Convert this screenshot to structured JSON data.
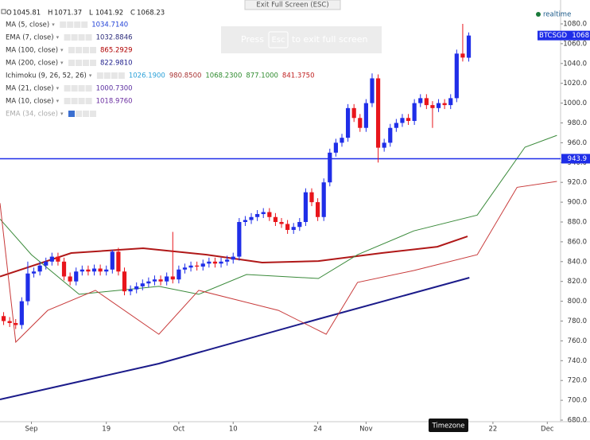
{
  "chart_data": {
    "type": "candlestick",
    "symbol": "BTCSGD",
    "last_price_label": "1068",
    "ohlc_labels": [
      "O",
      "H",
      "L",
      "C"
    ],
    "x": [
      1,
      2,
      3,
      4,
      5,
      6,
      7,
      8,
      9,
      10,
      11,
      12,
      13,
      14,
      15,
      16,
      17,
      18,
      19,
      20,
      21,
      22,
      23,
      24,
      25,
      26,
      27,
      28,
      29,
      30,
      31,
      32,
      33,
      34,
      35,
      36,
      37,
      38,
      39,
      40,
      41,
      42,
      43,
      44,
      45,
      46,
      47,
      48,
      49,
      50,
      51,
      52,
      53,
      54,
      55,
      56,
      57,
      58,
      59,
      60,
      61,
      62,
      63,
      64,
      65,
      66,
      67,
      68,
      69,
      70,
      71,
      72,
      73,
      74,
      75,
      76,
      77,
      78
    ],
    "open": [
      785,
      780,
      778,
      776,
      800,
      828,
      830,
      836,
      840,
      845,
      840,
      825,
      820,
      830,
      832,
      830,
      833,
      830,
      832,
      850,
      830,
      810,
      812,
      815,
      818,
      820,
      822,
      820,
      825,
      822,
      832,
      834,
      836,
      835,
      838,
      840,
      838,
      840,
      842,
      845,
      880,
      882,
      885,
      888,
      890,
      885,
      880,
      878,
      872,
      875,
      880,
      910,
      900,
      885,
      920,
      950,
      960,
      965,
      995,
      985,
      975,
      1000,
      1025,
      955,
      960,
      975,
      980,
      985,
      982,
      1000,
      1005,
      998,
      995,
      1000,
      998,
      1005,
      1050,
      1045.81
    ],
    "high": [
      789,
      784,
      782,
      804,
      840,
      834,
      840,
      844,
      849,
      849,
      844,
      829,
      834,
      836,
      836,
      837,
      837,
      836,
      852,
      854,
      834,
      816,
      819,
      822,
      824,
      826,
      826,
      829,
      870,
      836,
      838,
      840,
      840,
      842,
      844,
      844,
      844,
      846,
      849,
      884,
      886,
      889,
      892,
      894,
      894,
      889,
      884,
      882,
      879,
      884,
      914,
      914,
      904,
      924,
      954,
      964,
      969,
      999,
      999,
      989,
      1004,
      1030,
      1029,
      964,
      979,
      984,
      989,
      989,
      1004,
      1009,
      1009,
      1002,
      1004,
      1004,
      1009,
      1054,
      1080,
      1071.37
    ],
    "low": [
      776,
      774,
      772,
      772,
      796,
      824,
      826,
      832,
      836,
      836,
      821,
      816,
      816,
      826,
      826,
      826,
      826,
      826,
      828,
      826,
      806,
      806,
      808,
      811,
      814,
      816,
      816,
      816,
      818,
      818,
      828,
      830,
      831,
      831,
      834,
      834,
      834,
      836,
      838,
      841,
      876,
      878,
      881,
      884,
      881,
      876,
      874,
      868,
      868,
      871,
      876,
      896,
      881,
      881,
      916,
      946,
      956,
      961,
      981,
      971,
      971,
      996,
      940,
      951,
      956,
      971,
      976,
      978,
      978,
      996,
      994,
      975,
      991,
      994,
      994,
      1001,
      1042,
      1041.92
    ],
    "close": [
      780,
      778,
      776,
      800,
      828,
      830,
      836,
      840,
      845,
      840,
      825,
      820,
      830,
      832,
      830,
      833,
      830,
      832,
      850,
      830,
      810,
      812,
      815,
      818,
      820,
      822,
      820,
      825,
      822,
      832,
      834,
      836,
      835,
      838,
      840,
      838,
      840,
      842,
      845,
      880,
      882,
      885,
      888,
      890,
      885,
      880,
      878,
      872,
      875,
      880,
      910,
      900,
      885,
      920,
      950,
      960,
      965,
      995,
      985,
      975,
      1000,
      1025,
      955,
      960,
      975,
      980,
      985,
      982,
      1000,
      1005,
      998,
      995,
      1000,
      998,
      1005,
      1050,
      1046,
      1068.23
    ],
    "up_color": "#1f2ee8",
    "down_color": "#e8151b",
    "indicators": [
      {
        "name": "MA (5, close)",
        "readouts": [
          "1034.7140"
        ],
        "colors": [
          "#1f3fd6"
        ]
      },
      {
        "name": "EMA (7, close)",
        "readouts": [
          "1032.8846"
        ],
        "colors": [
          "#2b2b7a"
        ]
      },
      {
        "name": "MA (100, close)",
        "readouts": [
          "865.2929"
        ],
        "colors": [
          "#b00000"
        ],
        "line_color": "#b01818",
        "x": [
          0.4,
          12.2,
          24.1,
          34.6,
          43.8,
          53.1,
          63.6,
          72.8,
          77.8
        ],
        "values": [
          825,
          848.7,
          853.5,
          847,
          839,
          840.6,
          848.7,
          855,
          865.5
        ]
      },
      {
        "name": "MA (200, close)",
        "readouts": [
          "822.9810"
        ],
        "colors": [
          "#1b1b8a"
        ],
        "line_color": "#1b1b8a",
        "x": [
          0.4,
          26.7,
          53.1,
          78.1
        ],
        "values": [
          700.9,
          737,
          782,
          823.8
        ]
      },
      {
        "name": "Ichimoku (9, 26, 52, 26)",
        "readouts": [
          "1026.1900",
          "980.8500",
          "1068.2300",
          "877.1000",
          "841.3750"
        ],
        "colors": [
          "#2aa0d8",
          "#a83232",
          "#2e8b2e",
          "#2e8b2e",
          "#c02020"
        ],
        "lines": [
          {
            "color": "#3a8a3a",
            "x": [
              0.4,
              5.6,
              13.5,
              26.7,
              33.3,
              41.2,
              53.1,
              59.6,
              68.9,
              79.4,
              87.3,
              92.6
            ],
            "values": [
              883,
              847,
              807,
              815,
              807,
              827,
              823,
              847,
              871,
              887,
              955.5,
              967.5
            ]
          },
          {
            "color": "#c83a3a",
            "x": [
              0.4,
              3.0,
              8.3,
              16.2,
              26.7,
              33.3,
              46.5,
              54.4,
              59.6,
              68.9,
              79.4,
              86,
              92.6
            ],
            "values": [
              899,
              758.7,
              790.8,
              811,
              766.7,
              811,
              790.8,
              766.7,
              819,
              831,
              847,
              915,
              921
            ]
          }
        ]
      },
      {
        "name": "MA (21, close)",
        "readouts": [
          "1000.7300"
        ],
        "colors": [
          "#5a2ea0"
        ]
      },
      {
        "name": "MA (10, close)",
        "readouts": [
          "1018.9760"
        ],
        "colors": [
          "#6a2ea0"
        ]
      },
      {
        "name": "EMA (34, close)",
        "readouts": [],
        "colors": []
      }
    ],
    "hline": 943.9,
    "hline_color": "#1f2ee8",
    "ylim": [
      680,
      1080
    ],
    "xlim": [
      0.4,
      93.2
    ],
    "yticks": [
      {
        "value": 680,
        "label": "680.0"
      },
      {
        "value": 700,
        "label": "700.0"
      },
      {
        "value": 720,
        "label": "720.0"
      },
      {
        "value": 740,
        "label": "740.0"
      },
      {
        "value": 760,
        "label": "760.0"
      },
      {
        "value": 780,
        "label": "780.0"
      },
      {
        "value": 800,
        "label": "800.0"
      },
      {
        "value": 820,
        "label": "820.0"
      },
      {
        "value": 840,
        "label": "840.0"
      },
      {
        "value": 860,
        "label": "860.0"
      },
      {
        "value": 880,
        "label": "880.0"
      },
      {
        "value": 900,
        "label": "900.0"
      },
      {
        "value": 920,
        "label": "920.0"
      },
      {
        "value": 940,
        "label": "940.0"
      },
      {
        "value": 960,
        "label": "960.0"
      },
      {
        "value": 980,
        "label": "980.0"
      },
      {
        "value": 1000,
        "label": "1000.0"
      },
      {
        "value": 1020,
        "label": "1020.0"
      },
      {
        "value": 1040,
        "label": "1040.0"
      },
      {
        "value": 1060,
        "label": "1060.0"
      },
      {
        "value": 1080,
        "label": "1080.0"
      }
    ],
    "xticks": [
      {
        "value": 5.6,
        "label": "Sep"
      },
      {
        "value": 18,
        "label": "19"
      },
      {
        "value": 30,
        "label": "Oct"
      },
      {
        "value": 39,
        "label": "10"
      },
      {
        "value": 53,
        "label": "24"
      },
      {
        "value": 61,
        "label": "Nov"
      },
      {
        "value": 82,
        "label": "22"
      },
      {
        "value": 91,
        "label": "Dec"
      }
    ]
  },
  "ui": {
    "exit_tab": "Exit Full Screen (ESC)",
    "overlay_pre": "Press",
    "overlay_key": "Esc",
    "overlay_post": "to exit full screen",
    "realtime": "realtime",
    "timezone": "Timezone"
  }
}
